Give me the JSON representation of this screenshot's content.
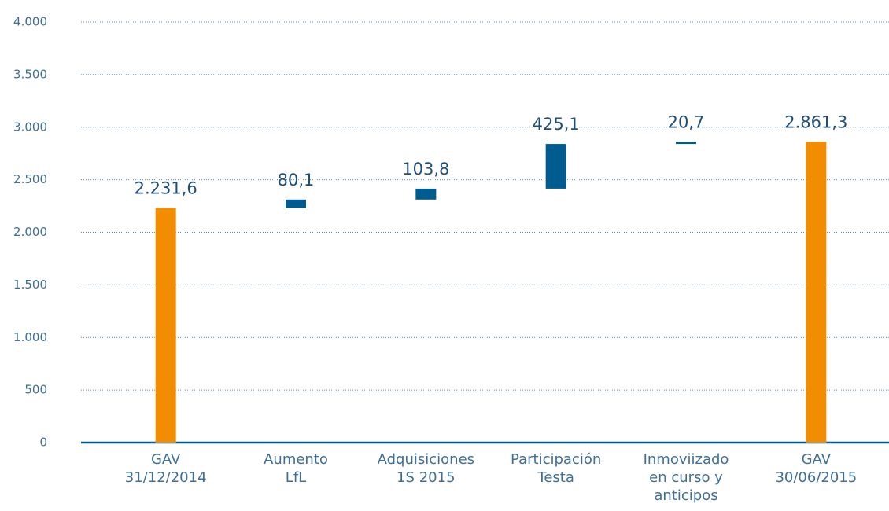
{
  "chart_data": {
    "type": "waterfall",
    "categories": [
      [
        "GAV",
        "31/12/2014"
      ],
      [
        "Aumento",
        "LfL"
      ],
      [
        "Adquisiciones",
        "1S 2015"
      ],
      [
        "Participación",
        "Testa"
      ],
      [
        "Inmoviizado",
        "en curso y",
        "anticipos"
      ],
      [
        "GAV",
        "30/06/2015"
      ]
    ],
    "values": [
      2231.6,
      80.1,
      103.8,
      425.1,
      20.7,
      2861.3
    ],
    "value_labels": [
      "2.231,6",
      "80,1",
      "103,8",
      "425,1",
      "20,7",
      "2.861,3"
    ],
    "measure": [
      "total",
      "relative",
      "relative",
      "relative",
      "relative",
      "total"
    ],
    "total_color": "#f28c00",
    "delta_color": "#005b8e",
    "ylim": [
      0,
      4000
    ],
    "yticks": [
      0,
      500,
      {
        "value": 1000,
        "label": "1.000"
      },
      {
        "value": 1500,
        "label": "1.500"
      },
      {
        "value": 2000,
        "label": "2.000"
      },
      {
        "value": 2500,
        "label": "2.500"
      },
      {
        "value": 3000,
        "label": "3.000"
      },
      {
        "value": 3500,
        "label": "3.500"
      },
      {
        "value": 4000,
        "label": "4.000"
      }
    ],
    "grid": true
  }
}
